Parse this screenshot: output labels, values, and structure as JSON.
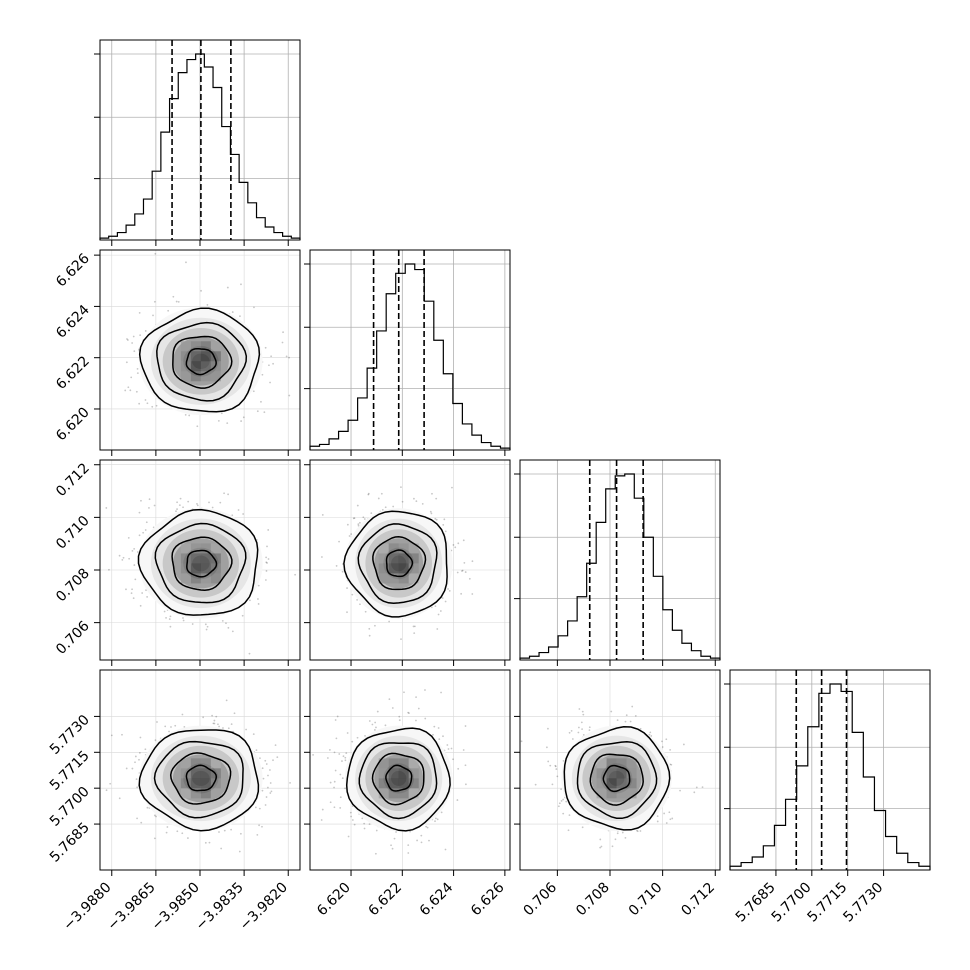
{
  "chart_data": {
    "type": "corner",
    "title": "",
    "grid": true,
    "parameters": [
      {
        "range": [
          -3.9884,
          -3.9816
        ],
        "ticks": [
          "−3.9880",
          "−3.9865",
          "−3.9850",
          "−3.9835",
          "−3.9820"
        ],
        "tick_values": [
          -3.988,
          -3.9865,
          -3.985,
          -3.9835,
          -3.982
        ]
      },
      {
        "range": [
          6.6184,
          6.6262
        ],
        "ticks": [
          "6.620",
          "6.622",
          "6.624",
          "6.626"
        ],
        "tick_values": [
          6.62,
          6.622,
          6.624,
          6.626
        ]
      },
      {
        "range": [
          0.70458,
          0.71218
        ],
        "ticks": [
          "0.706",
          "0.708",
          "0.710",
          "0.712"
        ],
        "tick_values": [
          0.706,
          0.708,
          0.71,
          0.712
        ]
      },
      {
        "range": [
          5.76658,
          5.77494
        ],
        "ticks": [
          "5.7685",
          "5.7700",
          "5.7715",
          "5.7730"
        ],
        "tick_values": [
          5.7685,
          5.77,
          5.7715,
          5.773
        ]
      }
    ],
    "marginals": [
      {
        "quantiles": [
          -3.98595,
          -3.98497,
          -3.98395
        ],
        "counts": [
          0.01,
          0.02,
          0.04,
          0.08,
          0.14,
          0.22,
          0.37,
          0.58,
          0.76,
          0.9,
          0.97,
          1.0,
          0.93,
          0.82,
          0.61,
          0.46,
          0.31,
          0.2,
          0.12,
          0.07,
          0.04,
          0.02,
          0.01
        ]
      },
      {
        "quantiles": [
          6.62088,
          6.62186,
          6.62285
        ],
        "counts": [
          0.02,
          0.03,
          0.06,
          0.1,
          0.16,
          0.28,
          0.44,
          0.64,
          0.84,
          0.95,
          1.0,
          0.97,
          0.8,
          0.59,
          0.41,
          0.25,
          0.14,
          0.08,
          0.04,
          0.02,
          0.01
        ]
      },
      {
        "quantiles": [
          0.70723,
          0.70825,
          0.70926
        ],
        "counts": [
          0.01,
          0.02,
          0.04,
          0.07,
          0.13,
          0.21,
          0.34,
          0.52,
          0.74,
          0.92,
          0.99,
          1.0,
          0.87,
          0.66,
          0.45,
          0.27,
          0.16,
          0.09,
          0.05,
          0.02,
          0.01
        ]
      },
      {
        "quantiles": [
          5.76935,
          5.77041,
          5.77145
        ],
        "counts": [
          0.02,
          0.04,
          0.07,
          0.13,
          0.24,
          0.38,
          0.56,
          0.77,
          0.95,
          1.0,
          0.96,
          0.74,
          0.5,
          0.32,
          0.18,
          0.09,
          0.04,
          0.02
        ]
      }
    ],
    "pairs": [
      {
        "x": 0,
        "y": 1,
        "center": [
          -3.98497,
          6.62186
        ]
      },
      {
        "x": 0,
        "y": 2,
        "center": [
          -3.98497,
          0.70825
        ]
      },
      {
        "x": 1,
        "y": 2,
        "center": [
          6.62186,
          0.70825
        ]
      },
      {
        "x": 0,
        "y": 3,
        "center": [
          -3.98497,
          5.77041
        ]
      },
      {
        "x": 1,
        "y": 3,
        "center": [
          6.62186,
          5.77041
        ]
      },
      {
        "x": 2,
        "y": 3,
        "center": [
          0.70825,
          5.77041
        ]
      }
    ],
    "sigma": [
      0.001,
      0.001,
      0.001,
      0.00105
    ],
    "contour_levels": [
      0.5,
      1.0,
      1.5,
      2.0
    ]
  }
}
